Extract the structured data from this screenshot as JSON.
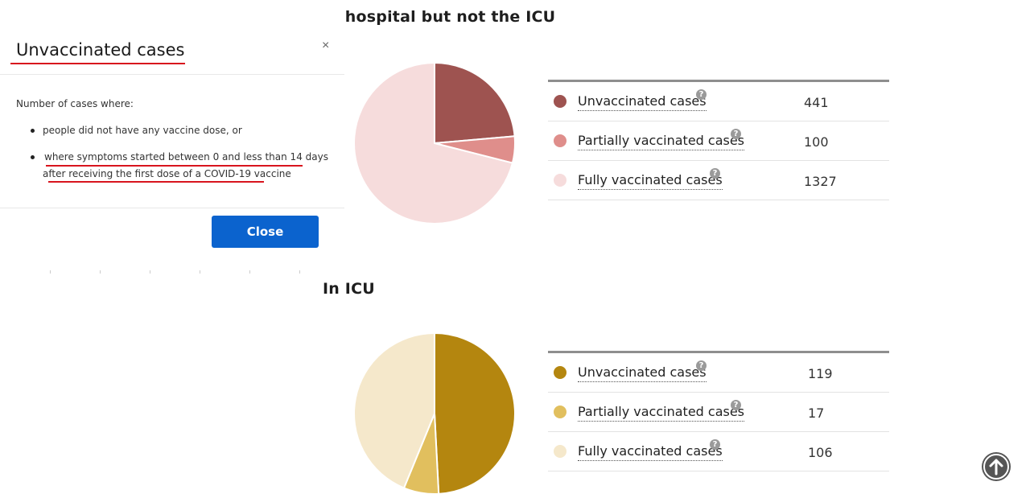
{
  "modal": {
    "title": "Unvaccinated cases",
    "close_x": "×",
    "intro": "Number of cases where:",
    "bullets": [
      "people did not have any vaccine dose, or",
      "where symptoms started between 0 and less than 14 days",
      "after receiving the first dose of a COVID-19 vaccine"
    ],
    "close_button": "Close"
  },
  "sections": {
    "hospital": {
      "title": "In hospital but not the ICU",
      "rows": [
        {
          "label": "Unvaccinated cases",
          "value": "441",
          "color": "#9e5350"
        },
        {
          "label": "Partially vaccinated cases",
          "value": "100",
          "color": "#df8e8b"
        },
        {
          "label": "Fully vaccinated cases",
          "value": "1327",
          "color": "#f6dcdc"
        }
      ]
    },
    "icu": {
      "title": "In ICU",
      "rows": [
        {
          "label": "Unvaccinated cases",
          "value": "119",
          "color": "#b4860f"
        },
        {
          "label": "Partially vaccinated cases",
          "value": "17",
          "color": "#e1bf5e"
        },
        {
          "label": "Fully vaccinated cases",
          "value": "106",
          "color": "#f5e8cb"
        }
      ]
    }
  },
  "help_icon": "?",
  "icons": {
    "help": "question-circle-icon",
    "close": "close-icon",
    "scroll": "arrow-up-circle-icon"
  }
}
